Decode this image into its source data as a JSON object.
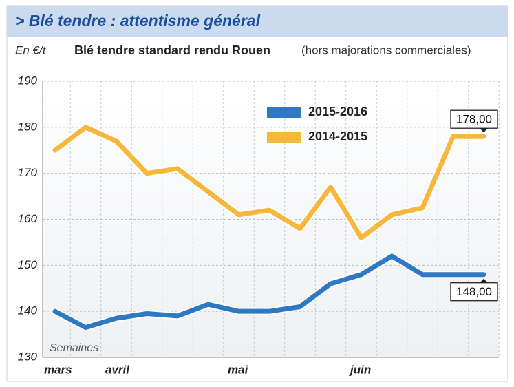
{
  "chart_data": {
    "type": "line",
    "title": "> Blé tendre : attentisme général",
    "unit_label": "En €/t",
    "subtitle": "Blé tendre standard rendu Rouen",
    "subtitle_note": "(hors majorations commerciales)",
    "annotation": "Semaines",
    "categories": [
      "mars",
      null,
      "avril",
      null,
      null,
      null,
      "mai",
      null,
      null,
      null,
      "juin",
      null,
      null,
      null,
      null
    ],
    "series": [
      {
        "name": "2015-2016",
        "color": "#2f78c4",
        "values": [
          140,
          136.5,
          138.5,
          139.5,
          139,
          141.5,
          140,
          140,
          141,
          146,
          148,
          152,
          148,
          148,
          148
        ],
        "value_labels": [
          null,
          null,
          null,
          null,
          null,
          null,
          null,
          null,
          null,
          null,
          null,
          null,
          null,
          null,
          "148,00"
        ]
      },
      {
        "name": "2014-2015",
        "color": "#f6b73c",
        "values": [
          175,
          180,
          177,
          170,
          171,
          166,
          161,
          162,
          158,
          167,
          156,
          161,
          162.5,
          178,
          178
        ],
        "value_labels": [
          null,
          null,
          null,
          null,
          null,
          null,
          null,
          null,
          null,
          null,
          null,
          null,
          null,
          null,
          "178,00"
        ]
      }
    ],
    "ylim": [
      130,
      190
    ],
    "yticks": [
      130,
      140,
      150,
      160,
      170,
      180,
      190
    ],
    "grid": true
  }
}
